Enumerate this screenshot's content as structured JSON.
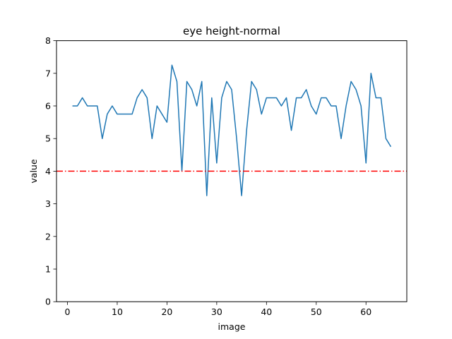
{
  "chart_data": {
    "type": "line",
    "title": "eye height-normal",
    "xlabel": "image",
    "ylabel": "value",
    "xlim": [
      -2.2,
      68.2
    ],
    "ylim": [
      0,
      8
    ],
    "xticks": [
      0,
      10,
      20,
      30,
      40,
      50,
      60
    ],
    "yticks": [
      0,
      1,
      2,
      3,
      4,
      5,
      6,
      7,
      8
    ],
    "grid": false,
    "series": [
      {
        "color": "#1f77b4",
        "x": [
          1,
          2,
          3,
          4,
          5,
          6,
          7,
          8,
          9,
          10,
          11,
          12,
          13,
          14,
          15,
          16,
          17,
          18,
          19,
          20,
          21,
          22,
          23,
          24,
          25,
          26,
          27,
          28,
          29,
          30,
          31,
          32,
          33,
          34,
          35,
          36,
          37,
          38,
          39,
          40,
          41,
          42,
          43,
          44,
          45,
          46,
          47,
          48,
          49,
          50,
          51,
          52,
          53,
          54,
          55,
          56,
          57,
          58,
          59,
          60,
          61,
          62,
          63,
          64,
          65
        ],
        "y": [
          6.0,
          6.0,
          6.25,
          6.0,
          6.0,
          6.0,
          5.0,
          5.75,
          6.0,
          5.75,
          5.75,
          5.75,
          5.75,
          6.25,
          6.5,
          6.25,
          5.0,
          6.0,
          5.75,
          5.5,
          7.25,
          6.75,
          4.0,
          6.75,
          6.5,
          6.0,
          6.75,
          3.25,
          6.25,
          4.25,
          6.25,
          6.75,
          6.5,
          5.0,
          3.25,
          5.25,
          6.75,
          6.5,
          5.75,
          6.25,
          6.25,
          6.25,
          6.0,
          6.25,
          5.25,
          6.25,
          6.25,
          6.5,
          6.0,
          5.75,
          6.25,
          6.25,
          6.0,
          6.0,
          5.0,
          6.0,
          6.75,
          6.5,
          6.0,
          4.25,
          7.0,
          6.25,
          6.25,
          5.0,
          4.75
        ]
      }
    ],
    "threshold": {
      "y": 4,
      "color": "#ff0000",
      "style": "dash-dot"
    }
  }
}
